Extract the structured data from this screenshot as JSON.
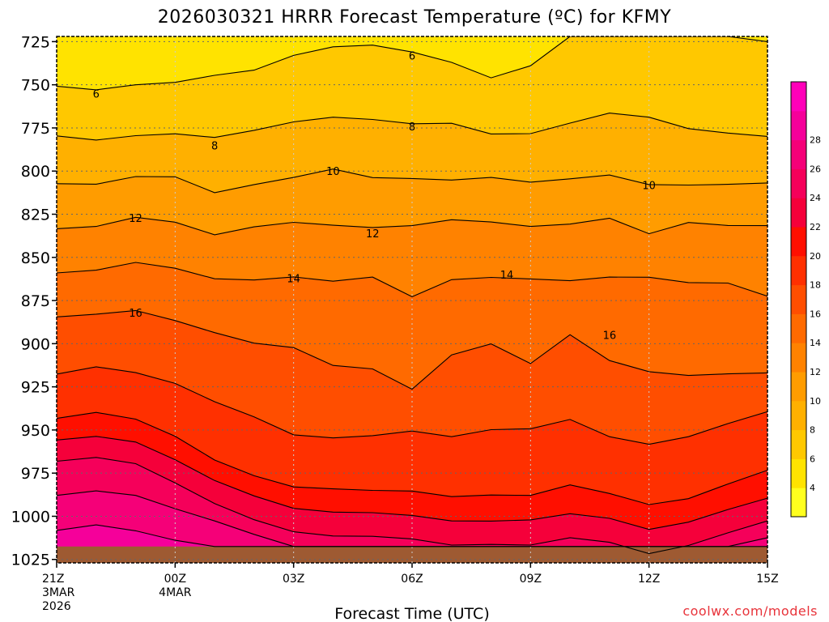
{
  "chart_data": {
    "type": "heatmap",
    "title": "2026030321 HRRR Forecast Temperature (ºC) for KFMY",
    "xlabel": "Forecast Time (UTC)",
    "ylabel": "",
    "credit": "coolwx.com/models",
    "x_hours": [
      0,
      1,
      2,
      3,
      4,
      5,
      6,
      7,
      8,
      9,
      10,
      11,
      12,
      13,
      14,
      15,
      16,
      17,
      18
    ],
    "x_ticks": [
      {
        "hour": 0,
        "lines": [
          "21Z",
          "3MAR",
          "2026"
        ]
      },
      {
        "hour": 3,
        "lines": [
          "00Z",
          "4MAR"
        ]
      },
      {
        "hour": 6,
        "lines": [
          "03Z"
        ]
      },
      {
        "hour": 9,
        "lines": [
          "06Z"
        ]
      },
      {
        "hour": 12,
        "lines": [
          "09Z"
        ]
      },
      {
        "hour": 15,
        "lines": [
          "12Z"
        ]
      },
      {
        "hour": 18,
        "lines": [
          "15Z"
        ]
      }
    ],
    "y_pressure_hpa": [
      725,
      750,
      775,
      800,
      825,
      850,
      875,
      900,
      925,
      950,
      975,
      1000,
      1025
    ],
    "y_range": [
      722,
      1027
    ],
    "surface_pressure_hpa": 1017.5,
    "colorbar": {
      "levels": [
        2,
        4,
        6,
        8,
        10,
        12,
        14,
        16,
        18,
        20,
        22,
        24,
        26,
        28,
        30
      ],
      "tick_labels": [
        "4",
        "6",
        "8",
        "10",
        "12",
        "14",
        "16",
        "18",
        "20",
        "22",
        "24",
        "26",
        "28"
      ],
      "colors": [
        "#ffff1e",
        "#ffe300",
        "#ffc800",
        "#ffb000",
        "#ff9c00",
        "#ff8200",
        "#ff6a00",
        "#ff4e00",
        "#ff3000",
        "#ff0f00",
        "#f5003a",
        "#f5005a",
        "#f50078",
        "#f5009a",
        "#ff00b9"
      ]
    },
    "isotherms": [
      {
        "value": 6,
        "pressure": [
          750.8,
          752.9,
          750,
          748.6,
          744.5,
          741.5,
          733,
          728,
          727,
          731,
          737,
          746,
          739,
          722,
          722,
          722,
          722,
          722,
          725
        ]
      },
      {
        "value": 8,
        "pressure": [
          779.6,
          782,
          779.5,
          778.4,
          780.5,
          776.4,
          771.5,
          768.8,
          770.1,
          772.6,
          772.3,
          778.5,
          778.3,
          772.2,
          766.4,
          768.8,
          775.4,
          778,
          779.9
        ]
      },
      {
        "value": 10,
        "pressure": [
          807.3,
          807.6,
          803.2,
          803.3,
          812.5,
          807.8,
          803.7,
          798.8,
          803.8,
          804.3,
          805.2,
          803.7,
          806.4,
          804.5,
          802.3,
          807.8,
          808.1,
          807.7,
          806.9
        ]
      },
      {
        "value": 12,
        "pressure": [
          833.4,
          832.1,
          826.8,
          829.6,
          836.9,
          832.3,
          829.7,
          831.4,
          832.7,
          831.6,
          828.2,
          829.5,
          832.1,
          830.7,
          827.3,
          836.3,
          829.8,
          831.5,
          831.6
        ]
      },
      {
        "value": 14,
        "pressure": [
          859,
          857.4,
          852.9,
          856.3,
          862.4,
          863.1,
          861.3,
          863.8,
          861.4,
          872.8,
          862.9,
          861.6,
          862.5,
          863.5,
          861.4,
          861.5,
          864.6,
          864.9,
          872.5
        ]
      },
      {
        "value": 16,
        "pressure": [
          884.5,
          882.9,
          880.8,
          886.6,
          893.6,
          899.7,
          902.3,
          912.6,
          914.6,
          926.4,
          906.5,
          900.1,
          911.5,
          894.8,
          909.8,
          916.2,
          918.4,
          917.5,
          916.9
        ]
      },
      {
        "value": 18,
        "pressure": [
          917.6,
          913.4,
          916.8,
          923,
          933.6,
          942.4,
          952.8,
          954.6,
          953.3,
          950.6,
          953.9,
          949.8,
          949.3,
          943.9,
          953.9,
          958.3,
          953.9,
          946.3,
          939.4
        ]
      },
      {
        "value": 20,
        "pressure": [
          943.3,
          939.8,
          943.7,
          953.6,
          967.4,
          976.5,
          983,
          984.1,
          985,
          985.4,
          988.6,
          987.7,
          987.9,
          981.8,
          986.8,
          993.2,
          989.8,
          981.3,
          973.3
        ]
      },
      {
        "value": 22,
        "pressure": [
          955.8,
          953.7,
          957,
          967.2,
          979.3,
          988.2,
          995.4,
          997.6,
          997.9,
          999.5,
          1002.7,
          1002.8,
          1002.1,
          998.5,
          1001.2,
          1007.6,
          1003.4,
          996.1,
          989.5
        ]
      },
      {
        "value": 24,
        "pressure": [
          968.1,
          965.9,
          969.5,
          980.7,
          992.6,
          1002,
          1009,
          1011.4,
          1011.6,
          1013.1,
          1016.7,
          1016.3,
          1016.7,
          1012.4,
          1015.1,
          1021.6,
          1016.9,
          1009.6,
          1002.7
        ]
      },
      {
        "value": 26,
        "pressure": [
          987.9,
          985.3,
          987.9,
          995.6,
          1002.7,
          1010.5,
          1017.5,
          1017.5,
          1017.5,
          1017.5,
          1017.5,
          1017.5,
          1017.5,
          1017.5,
          1017.5,
          1017.5,
          1017.5,
          1017.5,
          1012.4
        ]
      },
      {
        "value": 28,
        "pressure": [
          1008.2,
          1005,
          1008.4,
          1013.9,
          1017.5,
          1017.5,
          1017.5,
          1017.5,
          1017.5,
          1017.5,
          1017.5,
          1017.5,
          1017.5,
          1017.5,
          1017.5,
          1017.5,
          1017.5,
          1017.5,
          1017.5
        ]
      }
    ],
    "contour_labels": [
      {
        "value": 6,
        "hour": 1,
        "pressure": 755
      },
      {
        "value": 6,
        "hour": 9,
        "pressure": 733
      },
      {
        "value": 8,
        "hour": 4,
        "pressure": 785
      },
      {
        "value": 8,
        "hour": 9,
        "pressure": 774
      },
      {
        "value": 10,
        "hour": 7,
        "pressure": 800
      },
      {
        "value": 10,
        "hour": 15,
        "pressure": 808
      },
      {
        "value": 12,
        "hour": 2,
        "pressure": 827
      },
      {
        "value": 12,
        "hour": 8,
        "pressure": 836
      },
      {
        "value": 14,
        "hour": 6,
        "pressure": 862
      },
      {
        "value": 14,
        "hour": 11.4,
        "pressure": 860
      },
      {
        "value": 16,
        "hour": 2,
        "pressure": 882
      },
      {
        "value": 16,
        "hour": 14,
        "pressure": 895
      }
    ],
    "surface_color": "#9e5a32",
    "frame_color": "#000000",
    "grid_color": "#666666"
  }
}
